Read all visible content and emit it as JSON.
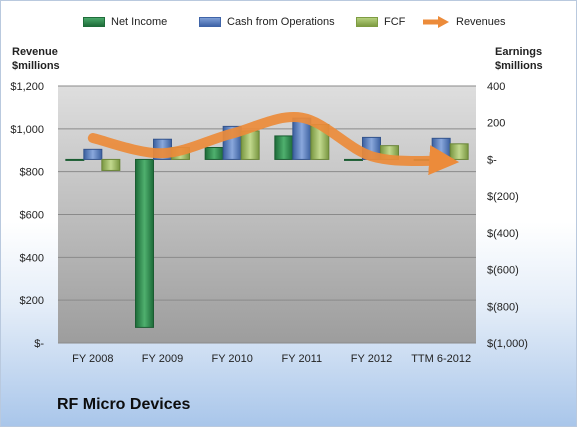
{
  "company_name": "RF Micro Devices",
  "chart_data": {
    "type": "bar",
    "categories": [
      "FY 2008",
      "FY 2009",
      "FY 2010",
      "FY 2011",
      "FY 2012",
      "TTM 6-2012"
    ],
    "left_axis": {
      "title": "Revenue\n$millions",
      "ylim": [
        0,
        1200
      ],
      "ticks": [
        "$-",
        "$200",
        "$400",
        "$600",
        "$800",
        "$1,000",
        "$1,200"
      ],
      "tick_values": [
        0,
        200,
        400,
        600,
        800,
        1000,
        1200
      ]
    },
    "right_axis": {
      "title": "Earnings\n$millions",
      "ylim": [
        -1000,
        400
      ],
      "ticks": [
        "$(1,000)",
        "$(800)",
        "$(600)",
        "$(400)",
        "$(200)",
        "$-",
        "200",
        "400"
      ],
      "tick_values": [
        -1000,
        -800,
        -600,
        -400,
        -200,
        0,
        200,
        400
      ]
    },
    "series": [
      {
        "name": "Net Income",
        "kind": "bar",
        "axis": "right",
        "color": "#2e8b4f",
        "values": [
          -5,
          -915,
          65,
          128,
          -5,
          -5
        ]
      },
      {
        "name": "Cash from Operations",
        "kind": "bar",
        "axis": "right",
        "color": "#5b7fbf",
        "values": [
          55,
          110,
          180,
          225,
          120,
          115
        ]
      },
      {
        "name": "FCF",
        "kind": "bar",
        "axis": "right",
        "color": "#9bbb59",
        "values": [
          -60,
          65,
          155,
          190,
          75,
          85
        ]
      },
      {
        "name": "Revenues",
        "kind": "line",
        "axis": "left",
        "color": "#ec8b3a",
        "values": [
          957,
          886,
          978,
          1052,
          872,
          850
        ]
      }
    ],
    "grid": true,
    "legend": "top"
  }
}
